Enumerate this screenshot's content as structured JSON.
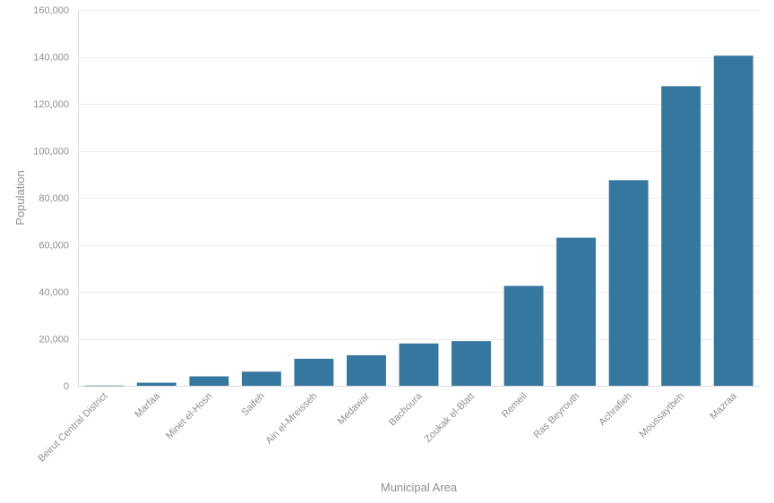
{
  "chart_data": {
    "type": "bar",
    "title": "",
    "xlabel": "Municipal Area",
    "ylabel": "Population",
    "categories": [
      "Beirut Central District",
      "Marfaa",
      "Minet el-Hosn",
      "Saifeh",
      "Ain el-Mreisseh",
      "Medawar",
      "Bachoura",
      "Zoukak el-Blatt",
      "Remeil",
      "Ras Beyrouth",
      "Achrafieh",
      "Moussaytbeh",
      "Mazraa"
    ],
    "values": [
      100,
      1300,
      4000,
      6000,
      11500,
      13000,
      18000,
      19000,
      42500,
      63000,
      87500,
      127500,
      140500
    ],
    "ylim": [
      0,
      160000
    ],
    "yticks": [
      0,
      20000,
      40000,
      60000,
      80000,
      100000,
      120000,
      140000,
      160000
    ],
    "ytick_labels": [
      "0",
      "20,000",
      "40,000",
      "60,000",
      "80,000",
      "100,000",
      "120,000",
      "140,000",
      "160,000"
    ],
    "grid": true,
    "legend": "none",
    "bar_color": "#3677a0"
  }
}
